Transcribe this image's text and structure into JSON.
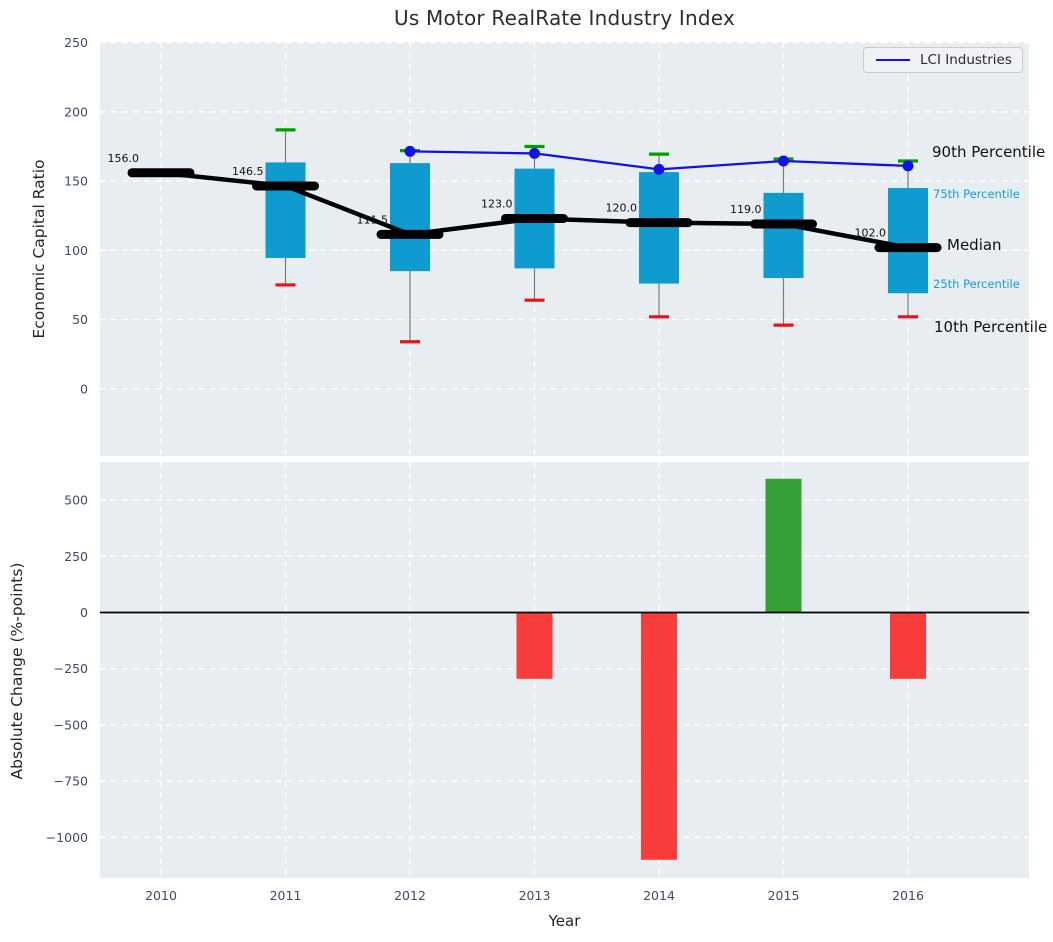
{
  "title": "Us Motor RealRate Industry Index",
  "legend": {
    "label": "LCI Industries"
  },
  "annotations": {
    "p90": "90th Percentile",
    "p75": "75th Percentile",
    "median": "Median",
    "p25": "25th Percentile",
    "p10": "10th Percentile"
  },
  "colors": {
    "plot_bg": "#e8edf1",
    "grid": "#ffffff",
    "box_fill": "#0d9bd0",
    "whisker": "#7a7a7a",
    "p90_cap": "#009e00",
    "p10_cap": "#ee1111",
    "median_line": "#000000",
    "lci_line": "#1212e6",
    "bar_negative": "#f83c3c",
    "bar_positive": "#38a038",
    "tick_label": "#3f4c63",
    "zero_line": "#000000",
    "data_label": "#111111"
  },
  "chart_data": [
    {
      "type": "box",
      "title": "Us Motor RealRate Industry Index",
      "ylabel": "Economic Capital Ratio",
      "x": [
        2010,
        2011,
        2012,
        2013,
        2014,
        2015,
        2016
      ],
      "series": [
        {
          "name": "90th Percentile",
          "values": [
            null,
            187,
            172,
            175,
            169.5,
            166,
            164.5
          ]
        },
        {
          "name": "75th Percentile",
          "values": [
            null,
            163.5,
            163,
            159,
            156.5,
            141.5,
            145
          ]
        },
        {
          "name": "Median",
          "values": [
            156.0,
            146.5,
            111.5,
            123.0,
            120.0,
            119.0,
            102.0
          ]
        },
        {
          "name": "25th Percentile",
          "values": [
            null,
            94.5,
            85,
            87,
            76,
            80,
            69
          ]
        },
        {
          "name": "10th Percentile",
          "values": [
            null,
            75,
            34,
            64,
            52,
            46,
            52
          ]
        },
        {
          "name": "LCI Industries",
          "values": [
            null,
            null,
            171.5,
            170,
            158.5,
            164.5,
            161
          ]
        }
      ],
      "median_labels": [
        "156.0",
        "146.5",
        "111.5",
        "123.0",
        "120.0",
        "119.0",
        "102.0"
      ],
      "yticks": [
        0,
        50,
        100,
        150,
        200,
        250
      ],
      "ylim": [
        -48,
        250
      ],
      "grid": true,
      "legend_position": "upper right"
    },
    {
      "type": "bar",
      "ylabel": "Absolute Change (%-points)",
      "xlabel": "Year",
      "categories": [
        2010,
        2011,
        2012,
        2013,
        2014,
        2015,
        2016
      ],
      "values": [
        0,
        0,
        0,
        -295,
        -1100,
        595,
        -295
      ],
      "yticks": [
        500,
        250,
        0,
        -250,
        -500,
        -750,
        -1000
      ],
      "ylim": [
        -1180,
        670
      ],
      "grid": true
    }
  ]
}
